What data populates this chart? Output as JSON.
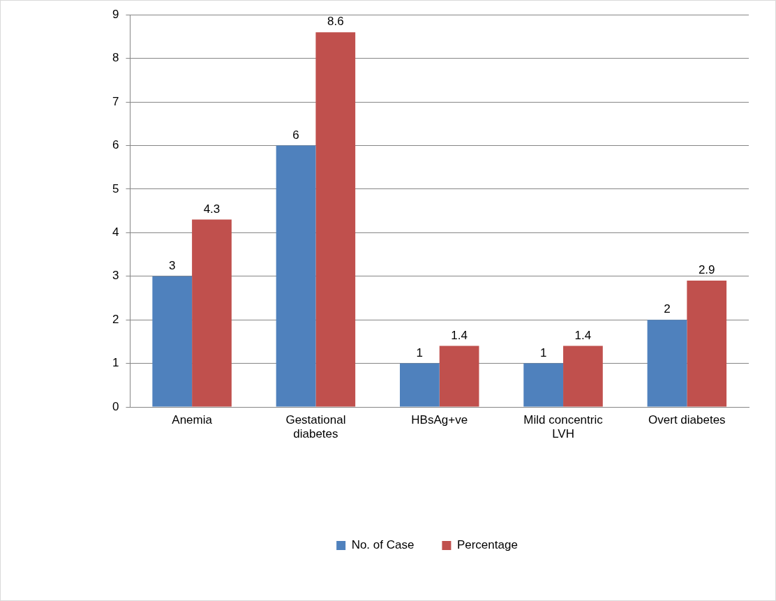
{
  "chart_data": {
    "type": "bar",
    "categories": [
      "Anemia",
      "Gestational diabetes",
      "HBsAg+ve",
      "Mild concentric LVH",
      "Overt diabetes"
    ],
    "series": [
      {
        "name": "No. of Case",
        "color": "#4f81bd",
        "values": [
          3,
          6,
          1,
          1,
          2
        ]
      },
      {
        "name": "Percentage",
        "color": "#c0504d",
        "values": [
          4.3,
          8.6,
          1.4,
          1.4,
          2.9
        ]
      }
    ],
    "ylim": [
      0,
      9
    ],
    "yticks": [
      0,
      1,
      2,
      3,
      4,
      5,
      6,
      7,
      8,
      9
    ],
    "grid": "y",
    "legend": "bottom",
    "data_labels": true
  }
}
